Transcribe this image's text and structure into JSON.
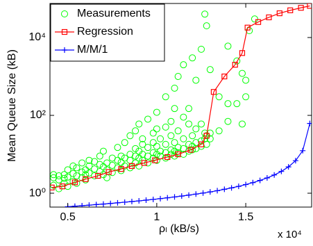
{
  "chart_data": {
    "type": "line",
    "xlabel": "ρₗ (kB/s)",
    "ylabel": "Mean Queue Size (kB)",
    "x_multiplier": "x 10⁴",
    "xlim": [
      0.4,
      1.87
    ],
    "ylim": [
      0.44,
      75000
    ],
    "log_y": true,
    "xticks": [
      0.5,
      1,
      1.5
    ],
    "yticks": [
      {
        "value": 1,
        "label": "10⁰"
      },
      {
        "value": 100,
        "label": "10²"
      },
      {
        "value": 10000,
        "label": "10⁴"
      }
    ],
    "legend": "upper left",
    "series": [
      {
        "name": "Measurements",
        "type": "scatter",
        "color": "#00ff00",
        "x": [
          0.42,
          0.42,
          0.42,
          0.45,
          0.45,
          0.45,
          0.48,
          0.48,
          0.48,
          0.5,
          0.5,
          0.5,
          0.53,
          0.53,
          0.53,
          0.55,
          0.55,
          0.55,
          0.58,
          0.58,
          0.58,
          0.6,
          0.6,
          0.6,
          0.62,
          0.62,
          0.62,
          0.65,
          0.65,
          0.65,
          0.68,
          0.68,
          0.68,
          0.7,
          0.7,
          0.7,
          0.72,
          0.72,
          0.72,
          0.75,
          0.75,
          0.75,
          0.78,
          0.78,
          0.78,
          0.8,
          0.8,
          0.8,
          0.82,
          0.82,
          0.82,
          0.85,
          0.85,
          0.85,
          0.85,
          0.88,
          0.88,
          0.88,
          0.88,
          0.9,
          0.9,
          0.9,
          0.9,
          0.92,
          0.92,
          0.92,
          0.92,
          0.95,
          0.95,
          0.95,
          0.95,
          0.98,
          0.98,
          0.98,
          0.98,
          1.0,
          1.0,
          1.0,
          1.0,
          1.0,
          1.02,
          1.02,
          1.02,
          1.05,
          1.05,
          1.05,
          1.05,
          1.05,
          1.08,
          1.08,
          1.08,
          1.08,
          1.1,
          1.1,
          1.1,
          1.1,
          1.1,
          1.12,
          1.12,
          1.12,
          1.12,
          1.15,
          1.15,
          1.15,
          1.15,
          1.15,
          1.18,
          1.18,
          1.18,
          1.18,
          1.2,
          1.2,
          1.2,
          1.2,
          1.22,
          1.22,
          1.22,
          1.22,
          1.25,
          1.25,
          1.25,
          1.25,
          1.27,
          1.27,
          1.27,
          1.28,
          1.28,
          1.28,
          1.3,
          1.3,
          1.3,
          1.35,
          1.35,
          1.4,
          1.4,
          1.4,
          1.45,
          1.45,
          1.48,
          1.48,
          1.5,
          1.5,
          1.52,
          1.55
        ],
        "values": [
          2.5,
          1.6,
          3,
          2.2,
          1.3,
          2.8,
          3,
          1.8,
          2.4,
          2.6,
          4,
          1.5,
          3.2,
          2,
          5,
          2.8,
          4.5,
          1.8,
          3.5,
          2.5,
          6,
          4,
          3,
          2.2,
          5,
          3.3,
          7,
          4.2,
          2.8,
          6.5,
          5.5,
          3.6,
          9,
          4.8,
          3,
          12,
          6,
          4,
          2.5,
          5.2,
          8,
          3.4,
          7,
          4.5,
          15,
          6.2,
          9,
          3.8,
          8,
          5,
          20,
          7,
          10,
          4.5,
          30,
          9,
          6,
          14,
          40,
          8,
          12,
          5,
          60,
          10,
          7,
          18,
          25,
          9,
          15,
          6,
          80,
          11,
          8,
          20,
          35,
          10,
          16,
          7,
          120,
          45,
          12,
          9,
          25,
          11,
          18,
          8,
          300,
          50,
          13,
          10,
          30,
          70,
          12,
          20,
          9,
          500,
          150,
          15,
          11,
          40,
          1000,
          14,
          25,
          10,
          2000,
          90,
          18,
          12,
          60,
          150,
          16,
          30,
          13,
          3000,
          20,
          45,
          800,
          14,
          22,
          60,
          5000,
          16,
          25,
          40000,
          35,
          30,
          20000,
          18,
          35,
          1500,
          25,
          40,
          300,
          70,
          6000,
          200,
          200,
          2500,
          1200,
          60,
          300,
          800,
          15000,
          30000
        ]
      },
      {
        "name": "Regression",
        "type": "line",
        "marker": "square",
        "color": "#ff0000",
        "x": [
          0.41,
          0.47,
          0.54,
          0.6,
          0.67,
          0.73,
          0.8,
          0.86,
          0.93,
          0.99,
          1.06,
          1.12,
          1.19,
          1.25,
          1.28,
          1.32,
          1.38,
          1.44,
          1.48,
          1.51,
          1.57,
          1.63,
          1.69,
          1.75,
          1.81,
          1.86
        ],
        "values": [
          1.4,
          1.5,
          1.9,
          2.3,
          2.8,
          3.5,
          4.2,
          5,
          6,
          7,
          8.5,
          10,
          13,
          18,
          30,
          400,
          1000,
          2000,
          4000,
          18000,
          25000,
          33000,
          42000,
          50000,
          58000,
          65000
        ]
      },
      {
        "name": "M/M/1",
        "type": "line",
        "marker": "plus",
        "color": "#0000ff",
        "x": [
          0.5,
          0.54,
          0.58,
          0.62,
          0.66,
          0.7,
          0.74,
          0.78,
          0.82,
          0.86,
          0.9,
          0.94,
          0.98,
          1.02,
          1.06,
          1.1,
          1.14,
          1.18,
          1.22,
          1.26,
          1.3,
          1.34,
          1.38,
          1.42,
          1.46,
          1.5,
          1.54,
          1.58,
          1.62,
          1.66,
          1.7,
          1.74,
          1.78,
          1.82,
          1.86
        ],
        "values": [
          0.45,
          0.464,
          0.478,
          0.494,
          0.51,
          0.527,
          0.546,
          0.566,
          0.588,
          0.611,
          0.636,
          0.664,
          0.693,
          0.726,
          0.762,
          0.801,
          0.845,
          0.894,
          0.949,
          1.01,
          1.08,
          1.16,
          1.26,
          1.37,
          1.5,
          1.67,
          1.87,
          2.13,
          2.47,
          2.94,
          3.63,
          4.75,
          6.86,
          12.4,
          62
        ]
      }
    ]
  }
}
